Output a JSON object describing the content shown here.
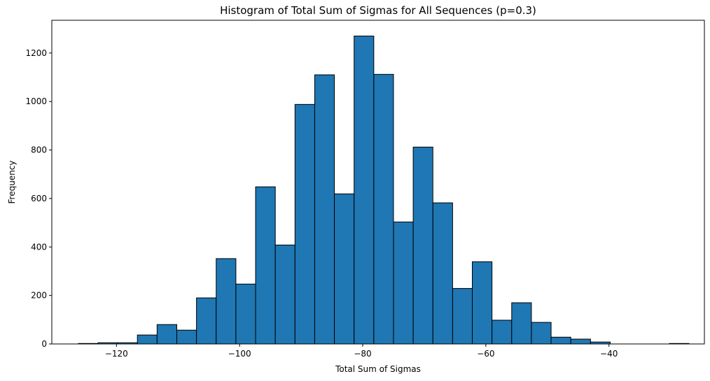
{
  "chart_data": {
    "type": "bar",
    "title": "Histogram of Total Sum of Sigmas for All Sequences (p=0.3)",
    "xlabel": "Total Sum of Sigmas",
    "ylabel": "Frequency",
    "xlim": [
      -130.5,
      -24.5
    ],
    "ylim": [
      0,
      1335
    ],
    "x_ticks": [
      -120,
      -100,
      -80,
      -60,
      -40
    ],
    "x_tick_labels": [
      "−120",
      "−100",
      "−80",
      "−60",
      "−40"
    ],
    "y_ticks": [
      0,
      200,
      400,
      600,
      800,
      1000,
      1200
    ],
    "y_tick_labels": [
      "0",
      "200",
      "400",
      "600",
      "800",
      "1000",
      "1200"
    ],
    "bin_edges": [
      -126.2,
      -123.0,
      -119.8,
      -116.6,
      -113.4,
      -110.2,
      -107.0,
      -103.8,
      -100.6,
      -97.4,
      -94.2,
      -91.0,
      -87.8,
      -84.6,
      -81.4,
      -78.2,
      -75.0,
      -71.8,
      -68.6,
      -65.4,
      -62.2,
      -59.0,
      -55.8,
      -52.6,
      -49.4,
      -46.2,
      -43.0,
      -39.8,
      -36.6,
      -33.4,
      -30.2,
      -27.0
    ],
    "values": [
      2,
      5,
      5,
      37,
      80,
      57,
      190,
      352,
      247,
      648,
      408,
      988,
      1110,
      619,
      1270,
      1112,
      503,
      812,
      582,
      229,
      339,
      98,
      170,
      89,
      28,
      20,
      8,
      0,
      0,
      0,
      2
    ],
    "colors": {
      "bar_fill": "#1f77b4",
      "bar_edge": "#000000",
      "axes": "#000000",
      "background": "#ffffff"
    },
    "grid": false,
    "legend": "none"
  }
}
